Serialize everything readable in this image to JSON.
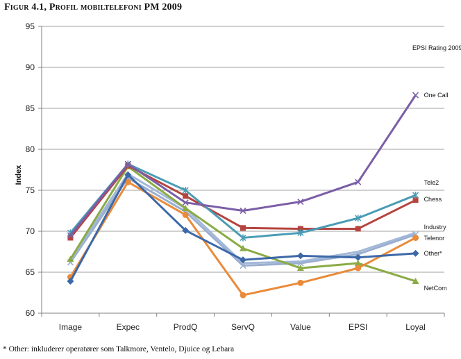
{
  "title": "Figur 4.1, Profil mobiltelefoni PM 2009",
  "footnote": "* Other: inkluderer operatører som Talkmore, Ventelo, Djuice og Lebara",
  "chart_data": {
    "type": "line",
    "title": "",
    "subtitle": "EPSI Rating 2009",
    "xlabel": "",
    "ylabel": "Index",
    "ylim": [
      60,
      95
    ],
    "yticks": [
      60,
      65,
      70,
      75,
      80,
      85,
      90,
      95
    ],
    "grid": true,
    "categories": [
      "Image",
      "Expec",
      "ProdQ",
      "ServQ",
      "Value",
      "EPSI",
      "Loyal"
    ],
    "series": [
      {
        "name": "One Call",
        "color": "#7b5ea7",
        "marker": "x",
        "values": [
          69.5,
          78.2,
          73.5,
          72.5,
          73.6,
          76.0,
          86.6
        ]
      },
      {
        "name": "Tele2",
        "color": "#4a9cb5",
        "marker": "star",
        "values": [
          69.8,
          78.2,
          75.0,
          69.2,
          69.8,
          71.6,
          74.4
        ]
      },
      {
        "name": "Chess",
        "color": "#b5443f",
        "marker": "square",
        "values": [
          69.2,
          78.0,
          74.3,
          70.4,
          70.3,
          70.3,
          73.8
        ]
      },
      {
        "name": "Industry",
        "color": "#a3b8d8",
        "marker": "none",
        "values": [
          66.5,
          77.0,
          72.8,
          66.1,
          66.3,
          67.5,
          69.8
        ]
      },
      {
        "name": "Telenor",
        "color": "#e98b3a",
        "marker": "circle",
        "values": [
          64.4,
          76.0,
          72.0,
          62.2,
          63.7,
          65.5,
          69.2
        ]
      },
      {
        "name": "Other*",
        "color": "#3d68a8",
        "marker": "diamond",
        "values": [
          63.9,
          76.9,
          70.1,
          66.5,
          67.0,
          66.8,
          67.3
        ]
      },
      {
        "name": "NetCom",
        "color": "#8aab45",
        "marker": "triangle",
        "values": [
          66.6,
          77.9,
          72.8,
          67.9,
          65.5,
          66.1,
          63.9
        ]
      },
      {
        "name": "",
        "color": "#9aaed0",
        "marker": "x",
        "values": [
          66.2,
          76.5,
          72.4,
          65.8,
          66.1,
          67.2,
          69.6
        ]
      }
    ]
  }
}
